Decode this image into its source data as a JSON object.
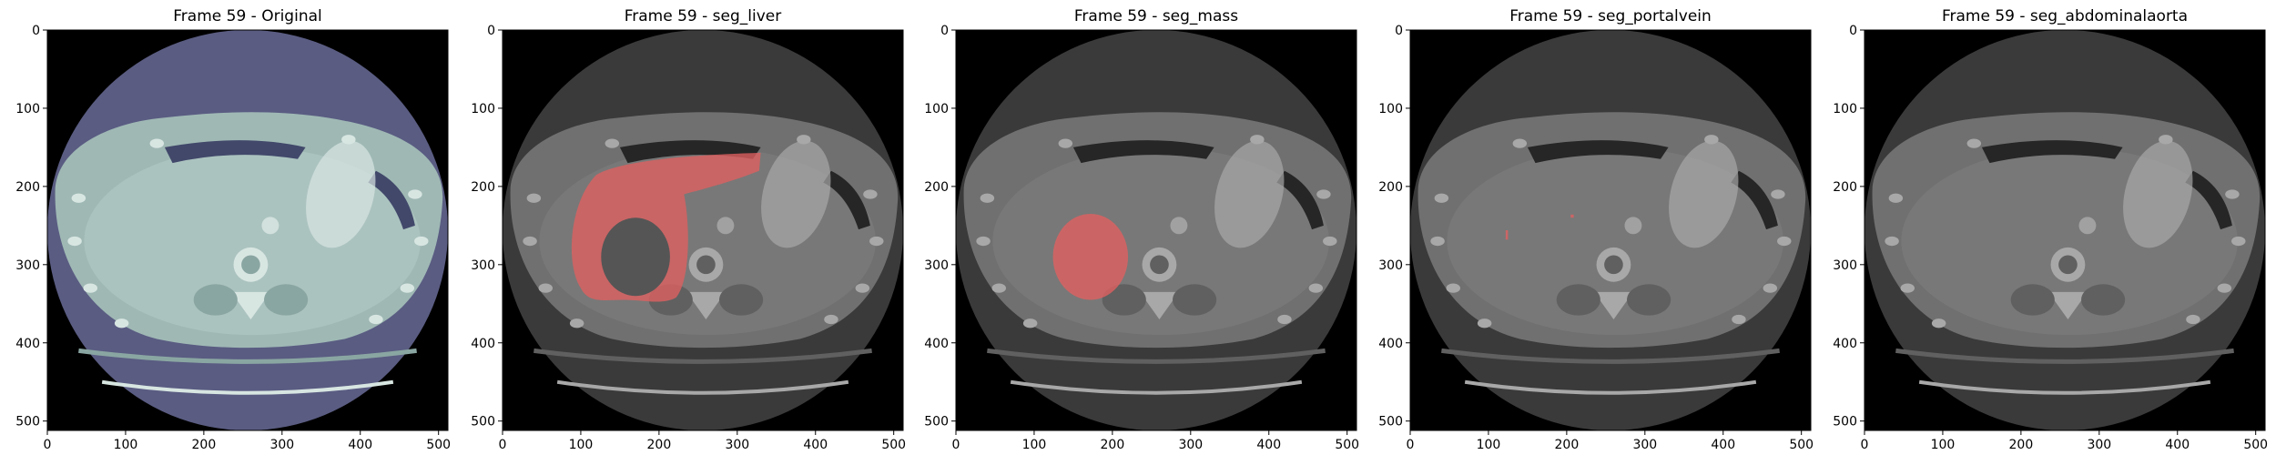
{
  "figure": {
    "panels": [
      {
        "id": "original",
        "title": "Frame 59 - Original",
        "colormap": "bone",
        "overlay": null
      },
      {
        "id": "seg-liver",
        "title": "Frame 59 - seg_liver",
        "colormap": "gray",
        "overlay": "liver"
      },
      {
        "id": "seg-mass",
        "title": "Frame 59 - seg_mass",
        "colormap": "gray",
        "overlay": "mass"
      },
      {
        "id": "seg-portalvein",
        "title": "Frame 59 - seg_portalvein",
        "colormap": "gray",
        "overlay": "portalvein"
      },
      {
        "id": "seg-abdominalaorta",
        "title": "Frame 59 - seg_abdominalaorta",
        "colormap": "gray",
        "overlay": null
      }
    ],
    "axes": {
      "xticks": [
        "0",
        "100",
        "200",
        "300",
        "400",
        "500"
      ],
      "yticks": [
        "0",
        "100",
        "200",
        "300",
        "400",
        "500"
      ],
      "xlim": [
        0,
        512
      ],
      "ylim": [
        512,
        0
      ]
    },
    "colors": {
      "background": "#000000",
      "overlay": "#e06060",
      "bone_body": "#9fb8b4",
      "bone_fov": "#5a5c82",
      "gray_body": "#707070",
      "gray_fov": "#3a3a3a"
    }
  }
}
